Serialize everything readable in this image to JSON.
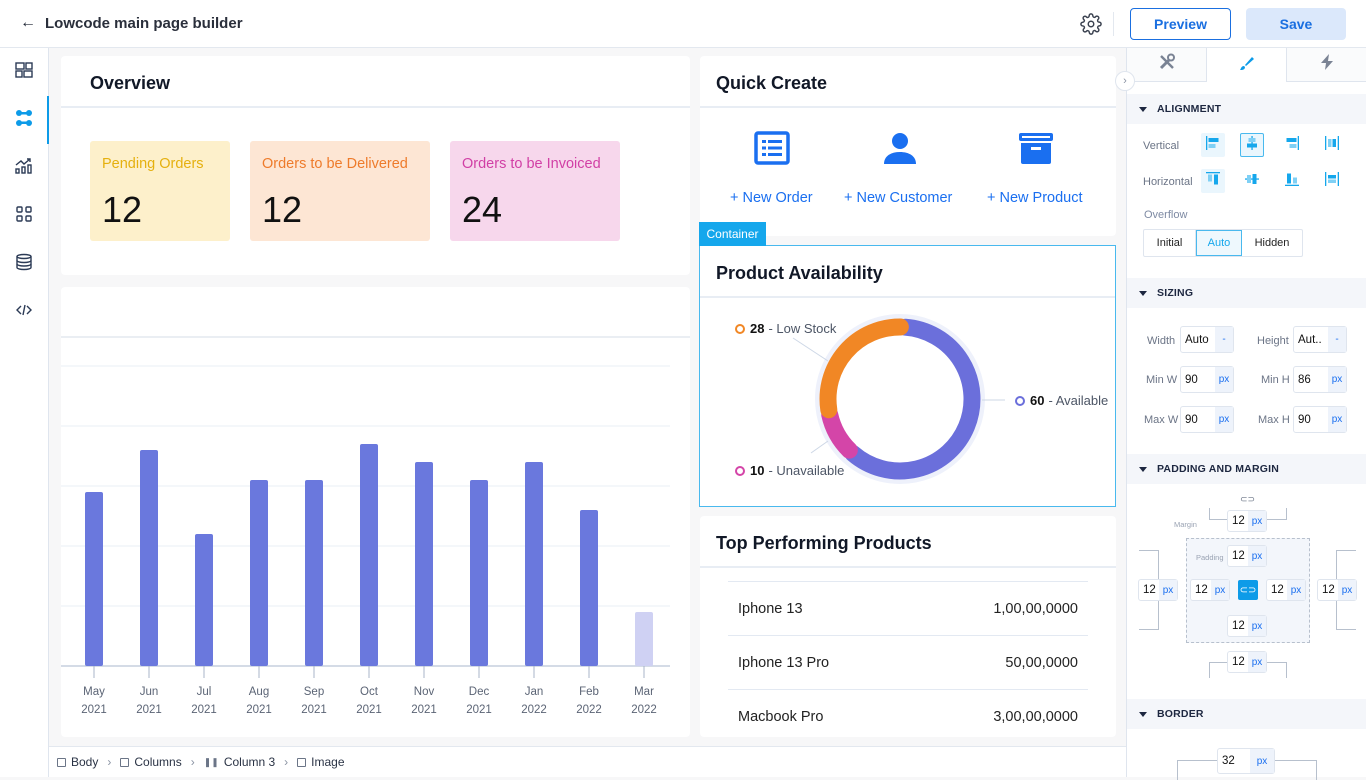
{
  "header": {
    "title": "Lowcode main page builder",
    "back_icon": "arrow-left-icon",
    "settings_icon": "gear-icon",
    "preview_label": "Preview",
    "save_label": "Save"
  },
  "sidebar": {
    "items": [
      {
        "icon": "layout-icon",
        "active": false
      },
      {
        "icon": "components-icon",
        "active": true
      },
      {
        "icon": "analytics-icon",
        "active": false
      },
      {
        "icon": "widgets-grid-icon",
        "active": false
      },
      {
        "icon": "database-icon",
        "active": false
      },
      {
        "icon": "code-icon",
        "active": false
      }
    ]
  },
  "overview": {
    "title": "Overview",
    "stats": [
      {
        "label": "Pending Orders",
        "value": "12",
        "bg": "#fdf0cb",
        "fg": "#e5b00f"
      },
      {
        "label": "Orders to be Delivered",
        "value": "12",
        "bg": "#fde6d4",
        "fg": "#ee7b2b"
      },
      {
        "label": "Orders to be Invoiced",
        "value": "24",
        "bg": "#f7d7ec",
        "fg": "#d13fa5"
      }
    ]
  },
  "chart_data": {
    "type": "bar",
    "title": "",
    "xlabel": "",
    "ylabel": "",
    "categories": [
      "May 2021",
      "Jun 2021",
      "Jul 2021",
      "Aug 2021",
      "Sep 2021",
      "Oct 2021",
      "Nov 2021",
      "Dec 2021",
      "Jan 2022",
      "Feb 2022",
      "Mar 2022"
    ],
    "cat_month": [
      "May",
      "Jun",
      "Jul",
      "Aug",
      "Sep",
      "Oct",
      "Nov",
      "Dec",
      "Jan",
      "Feb",
      "Mar"
    ],
    "cat_year": [
      "2021",
      "2021",
      "2021",
      "2021",
      "2021",
      "2021",
      "2021",
      "2021",
      "2022",
      "2022",
      "2022"
    ],
    "values": [
      29,
      36,
      22,
      31,
      31,
      37,
      34,
      31,
      34,
      26,
      9
    ],
    "highlight_last_faded": true,
    "ylim": [
      0,
      50
    ],
    "grid": true,
    "bar_color": "#6a78dd",
    "faded_color": "#cfd1f3"
  },
  "quick_create": {
    "title": "Quick Create",
    "items": [
      {
        "icon": "list-document-icon",
        "label": "+ New Order"
      },
      {
        "icon": "user-icon",
        "label": "+ New Customer"
      },
      {
        "icon": "archive-box-icon",
        "label": "+ New Product"
      }
    ]
  },
  "selection": {
    "tag": "Container"
  },
  "product_availability": {
    "title": "Product Availability",
    "chart_data": {
      "type": "pie",
      "slices": [
        {
          "label": "Available",
          "value": 60,
          "color": "#6b6fdb"
        },
        {
          "label": "Unavailable",
          "value": 10,
          "color": "#d445a8"
        },
        {
          "label": "Low Stock",
          "value": 28,
          "color": "#f18725"
        }
      ]
    },
    "legend": [
      {
        "value": "28",
        "label": "- Low Stock",
        "color": "#f18725"
      },
      {
        "value": "60",
        "label": "- Available",
        "color": "#6b6fdb"
      },
      {
        "value": "10",
        "label": "- Unavailable",
        "color": "#d445a8"
      }
    ]
  },
  "top_products": {
    "title": "Top Performing Products",
    "rows": [
      {
        "name": "Iphone 13",
        "value": "1,00,00,0000"
      },
      {
        "name": "Iphone 13 Pro",
        "value": "50,00,0000"
      },
      {
        "name": "Macbook Pro",
        "value": "3,00,00,0000"
      }
    ]
  },
  "breadcrumb": [
    {
      "icon": "body-icon",
      "label": "Body"
    },
    {
      "icon": "columns-icon",
      "label": "Columns"
    },
    {
      "icon": "column-icon",
      "label": "Column 3"
    },
    {
      "icon": "image-icon",
      "label": "Image"
    }
  ],
  "properties": {
    "tabs": [
      {
        "icon": "tools-icon",
        "active": false
      },
      {
        "icon": "brush-icon",
        "active": true
      },
      {
        "icon": "lightning-icon",
        "active": false
      }
    ],
    "alignment": {
      "title": "ALIGNMENT",
      "vertical_label": "Vertical",
      "horizontal_label": "Horizontal",
      "overflow_label": "Overflow",
      "overflow_options": [
        "Initial",
        "Auto",
        "Hidden"
      ],
      "overflow_selected": "Auto"
    },
    "sizing": {
      "title": "SIZING",
      "width_label": "Width",
      "width_value": "Auto",
      "width_unit": "-",
      "height_label": "Height",
      "height_value": "Aut..",
      "height_unit": "-",
      "minw_label": "Min W",
      "minw_value": "90",
      "minw_unit": "px",
      "minh_label": "Min H",
      "minh_value": "86",
      "minh_unit": "px",
      "maxw_label": "Max W",
      "maxw_value": "90",
      "maxw_unit": "px",
      "maxh_label": "Max H",
      "maxh_value": "90",
      "maxh_unit": "px"
    },
    "padding_margin": {
      "title": "PADDING AND MARGIN",
      "margin_label": "Margin",
      "padding_label": "Padding",
      "margin_top": "12",
      "margin_left": "12",
      "margin_right": "12",
      "margin_bottom": "12",
      "padding_top": "12",
      "padding_left": "12",
      "padding_right": "12",
      "padding_bottom": "12",
      "unit": "px"
    },
    "border": {
      "title": "BORDER",
      "value": "32",
      "unit": "px"
    }
  }
}
